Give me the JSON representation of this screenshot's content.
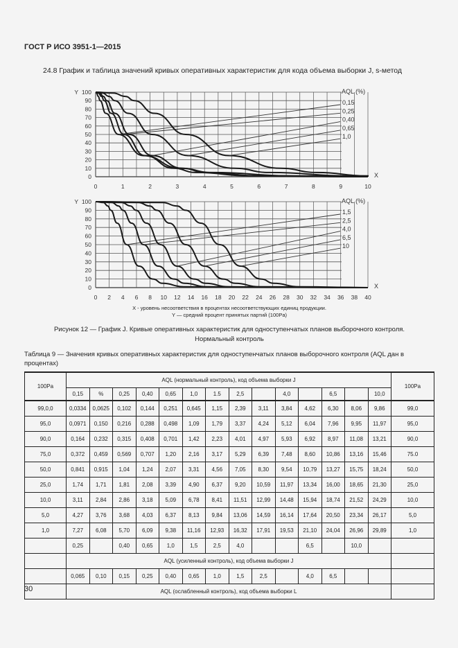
{
  "header": "ГОСТ Р ИСО 3951-1—2015",
  "section_title": "24.8 График и таблица значений кривых оперативных характеристик для кода объема выборки J, s-метод",
  "chart_data": [
    {
      "type": "line",
      "ylabel": "Y",
      "xlabel": "X",
      "legend_title": "AQL (%)",
      "xlim": [
        0,
        10
      ],
      "ylim": [
        0,
        100
      ],
      "grid": true,
      "x_ticks": [
        "0",
        "1",
        "2",
        "3",
        "4",
        "5",
        "6",
        "7",
        "8",
        "9",
        "10"
      ],
      "y_ticks": [
        "0",
        "10",
        "20",
        "30",
        "40",
        "50",
        "60",
        "70",
        "80",
        "90",
        "100"
      ],
      "series": [
        {
          "name": "0,15",
          "x": [
            0,
            0.0334,
            0.0971,
            0.164,
            0.372,
            0.841,
            1.74,
            3.11,
            4.27,
            7.27
          ],
          "y": [
            100,
            99,
            95,
            90,
            75,
            50,
            25,
            10,
            5,
            1
          ]
        },
        {
          "name": "0,25",
          "x": [
            0,
            0.102,
            0.216,
            0.315,
            0.569,
            1.04,
            1.81,
            2.86,
            3.68,
            5.7
          ],
          "y": [
            100,
            99,
            95,
            90,
            75,
            50,
            25,
            10,
            5,
            1
          ]
        },
        {
          "name": "0,40",
          "x": [
            0,
            0.144,
            0.288,
            0.408,
            0.707,
            1.24,
            2.08,
            3.18,
            4.03,
            6.09
          ],
          "y": [
            100,
            99,
            95,
            90,
            75,
            50,
            25,
            10,
            5,
            1
          ]
        },
        {
          "name": "0,65",
          "x": [
            0,
            0.251,
            0.498,
            0.701,
            1.2,
            2.07,
            3.39,
            5.09,
            6.37,
            9.38
          ],
          "y": [
            100,
            99,
            95,
            90,
            75,
            50,
            25,
            10,
            5,
            1
          ]
        },
        {
          "name": "1,0",
          "x": [
            0,
            0.645,
            1.09,
            1.42,
            2.16,
            3.31,
            4.9,
            6.78,
            8.13,
            11.16
          ],
          "y": [
            100,
            99,
            95,
            90,
            75,
            50,
            25,
            10,
            5,
            1
          ]
        }
      ]
    },
    {
      "type": "line",
      "ylabel": "Y",
      "xlabel": "X",
      "legend_title": "AQL (%)",
      "xlim": [
        0,
        40
      ],
      "ylim": [
        0,
        100
      ],
      "grid": true,
      "x_ticks": [
        "0",
        "2",
        "4",
        "6",
        "8",
        "10",
        "12",
        "14",
        "16",
        "18",
        "20",
        "22",
        "24",
        "26",
        "28",
        "30",
        "32",
        "34",
        "36",
        "38",
        "40"
      ],
      "y_ticks": [
        "0",
        "10",
        "20",
        "30",
        "40",
        "50",
        "60",
        "70",
        "80",
        "90",
        "100"
      ],
      "series": [
        {
          "name": "1,5",
          "x": [
            0,
            1.15,
            1.79,
            2.23,
            3.17,
            4.56,
            6.37,
            8.41,
            9.84,
            12.93
          ],
          "y": [
            100,
            99,
            95,
            90,
            75,
            50,
            25,
            10,
            5,
            1
          ]
        },
        {
          "name": "2,5",
          "x": [
            0,
            2.39,
            3.37,
            4.01,
            5.29,
            7.05,
            9.2,
            11.51,
            13.06,
            16.32
          ],
          "y": [
            100,
            99,
            95,
            90,
            75,
            50,
            25,
            10,
            5,
            1
          ]
        },
        {
          "name": "4,0",
          "x": [
            0,
            3.84,
            5.12,
            5.93,
            7.48,
            9.54,
            11.97,
            14.48,
            16.14,
            19.53
          ],
          "y": [
            100,
            99,
            95,
            90,
            75,
            50,
            25,
            10,
            5,
            1
          ]
        },
        {
          "name": "6,5",
          "x": [
            0,
            6.3,
            7.96,
            8.97,
            10.86,
            13.27,
            16.0,
            18.74,
            20.5,
            24.04
          ],
          "y": [
            100,
            99,
            95,
            90,
            75,
            50,
            25,
            10,
            5,
            1
          ]
        },
        {
          "name": "10",
          "x": [
            0,
            9.86,
            11.97,
            13.21,
            15.46,
            18.24,
            21.3,
            24.29,
            26.17,
            29.89
          ],
          "y": [
            100,
            99,
            95,
            90,
            75,
            50,
            25,
            10,
            5,
            1
          ]
        }
      ]
    }
  ],
  "axis_notes": [
    "X  - уровень несоответствия в процентах несоответствующих единиц продукции.",
    "Y — средний процент принятых партий (100Pa)"
  ],
  "figure_caption": [
    "Рисунок 12 — График J. Кривые оперативных характеристик для одноступенчатых планов выборочного контроля.",
    "Нормальный контроль"
  ],
  "table_title": "Таблица 9 — Значения кривых оперативных характеристик для одноступенчатых планов выборочного контроля (AQL дан в процентах)",
  "table": {
    "corner": "100Pa",
    "normal_header": "AQL (нормальный контроль), код объема выборки J",
    "normal_aql": [
      "0,15",
      "%",
      "0,25",
      "0,40",
      "0,65",
      "1,0",
      "1.5",
      "2,5",
      "",
      "4,0",
      "",
      "6,5",
      "",
      "10,0"
    ],
    "rows": [
      [
        "99,0,0",
        "0,0334",
        "0,0625",
        "0,102",
        "0,144",
        "0,251",
        "0,645",
        "1,15",
        "2,39",
        "3,11",
        "3,84",
        "4,62",
        "6,30",
        "8,06",
        "9,86",
        "99,0"
      ],
      [
        "95,0",
        "0,0971",
        "0,150",
        "0,216",
        "0,288",
        "0,498",
        "1,09",
        "1,79",
        "3,37",
        "4,24",
        "5,12",
        "6,04",
        "7,96",
        "9,95",
        "11,97",
        "95,0"
      ],
      [
        "90,0",
        "0,164",
        "0,232",
        "0,315",
        "0,408",
        "0,701",
        "1,42",
        "2,23",
        "4,01",
        "4,97",
        "5,93",
        "6,92",
        "8,97",
        "11,08",
        "13,21",
        "90,0"
      ],
      [
        "75,0",
        "0,372",
        "0,459",
        "0,569",
        "0,707",
        "1,20",
        "2,16",
        "3,17",
        "5,29",
        "6,39",
        "7,48",
        "8,60",
        "10,86",
        "13,16",
        "15,46",
        "75.0"
      ],
      [
        "50,0",
        "0,841",
        "0,915",
        "1,04",
        "1,24",
        "2,07",
        "3,31",
        "4,56",
        "7,05",
        "8,30",
        "9,54",
        "10,79",
        "13,27",
        "15,75",
        "18,24",
        "50,0"
      ],
      [
        "25,0",
        "1,74",
        "1,71",
        "1,81",
        "2,08",
        "3,39",
        "4,90",
        "6,37",
        "9,20",
        "10,59",
        "11,97",
        "13,34",
        "16,00",
        "18,65",
        "21,30",
        "25,0"
      ],
      [
        "10,0",
        "3,11",
        "2,84",
        "2,86",
        "3,18",
        "5,09",
        "6,78",
        "8,41",
        "11,51",
        "12,99",
        "14,48",
        "15,94",
        "18,74",
        "21,52",
        "24,29",
        "10,0"
      ],
      [
        "5,0",
        "4,27",
        "3,76",
        "3,68",
        "4,03",
        "6,37",
        "8,13",
        "9,84",
        "13,06",
        "14,59",
        "16,14",
        "17,64",
        "20,50",
        "23,34",
        "26,17",
        "5,0"
      ],
      [
        "1,0",
        "7,27",
        "6,08",
        "5,70",
        "6,09",
        "9,38",
        "11,16",
        "12,93",
        "16,32",
        "17,91",
        "19,53",
        "21,10",
        "24,04",
        "26,96",
        "29,89",
        "1,0"
      ]
    ],
    "tightened_aql": [
      "0,25",
      "",
      "0,40",
      "0,65",
      "1,0",
      "1,5",
      "2,5",
      "4,0",
      "",
      "",
      "6,5",
      "",
      "10,0",
      ""
    ],
    "tightened_header": "AQL (усиленный контроль), код объема выборки J",
    "reduced_aql": [
      "0,065",
      "0,10",
      "0,15",
      "0,25",
      "0,40",
      "0,65",
      "1,0",
      "1,5",
      "2,5",
      "",
      "4,0",
      "6,5",
      "",
      ""
    ],
    "reduced_header": "AQL (ослабленный контроль), код объема выборки L"
  },
  "page_number": "30"
}
